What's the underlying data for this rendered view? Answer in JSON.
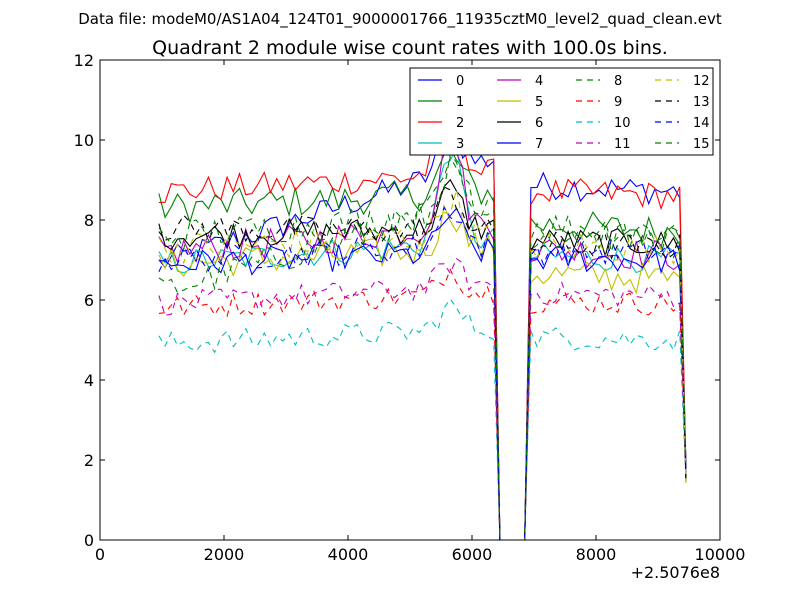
{
  "suptitle": "Data file: modeM0/AS1A04_124T01_9000001766_11935cztM0_level2_quad_clean.evt",
  "chart_data": {
    "type": "line",
    "title": "Quadrant 2 module wise count rates with 100.0s bins.",
    "xlabel": "",
    "ylabel": "",
    "xlim": [
      0,
      10000
    ],
    "ylim": [
      0,
      12
    ],
    "x_offset_label": "+2.5076e8",
    "xticks": [
      0,
      2000,
      4000,
      6000,
      8000,
      10000
    ],
    "yticks": [
      0,
      2,
      4,
      6,
      8,
      10,
      12
    ],
    "x": [
      950,
      1050,
      1150,
      1250,
      1350,
      1450,
      1550,
      1650,
      1750,
      1850,
      1950,
      2050,
      2150,
      2250,
      2350,
      2450,
      2550,
      2650,
      2750,
      2850,
      2950,
      3050,
      3150,
      3250,
      3350,
      3450,
      3550,
      3650,
      3750,
      3850,
      3950,
      4050,
      4150,
      4250,
      4350,
      4450,
      4550,
      4650,
      4750,
      4850,
      4950,
      5050,
      5150,
      5250,
      5350,
      5450,
      5550,
      5650,
      5750,
      5850,
      5950,
      6050,
      6150,
      6250,
      6350,
      6450,
      6550,
      6650,
      6750,
      6850,
      6950,
      7050,
      7150,
      7250,
      7350,
      7450,
      7550,
      7650,
      7750,
      7850,
      7950,
      8050,
      8150,
      8250,
      8350,
      8450,
      8550,
      8650,
      8750,
      8850,
      8950,
      9050,
      9150,
      9250,
      9350,
      9450
    ],
    "series": [
      {
        "name": "0",
        "color": "#0000ff",
        "dash": "solid",
        "base": [
          6.9,
          9.6,
          8.7
        ],
        "amp": 0.35,
        "peak": 1.0
      },
      {
        "name": "1",
        "color": "#008000",
        "dash": "solid",
        "base": [
          8.3,
          8.7,
          7.7
        ],
        "amp": 0.4,
        "peak": 1.0
      },
      {
        "name": "2",
        "color": "#ff0000",
        "dash": "solid",
        "base": [
          8.7,
          9.2,
          8.6
        ],
        "amp": 0.35,
        "peak": 1.8
      },
      {
        "name": "3",
        "color": "#00bfbf",
        "dash": "solid",
        "base": [
          6.9,
          7.5,
          7.0
        ],
        "amp": 0.35,
        "peak": 2.4
      },
      {
        "name": "4",
        "color": "#bf00bf",
        "dash": "solid",
        "base": [
          7.2,
          7.9,
          7.1
        ],
        "amp": 0.4,
        "peak": 2.2
      },
      {
        "name": "5",
        "color": "#bfbf00",
        "dash": "solid",
        "base": [
          6.9,
          7.3,
          6.5
        ],
        "amp": 0.4,
        "peak": 1.0
      },
      {
        "name": "6",
        "color": "#000000",
        "dash": "solid",
        "base": [
          7.6,
          7.8,
          7.4
        ],
        "amp": 0.35,
        "peak": 1.0
      },
      {
        "name": "7",
        "color": "#0000ff",
        "dash": "solid",
        "base": [
          6.9,
          7.2,
          7.0
        ],
        "amp": 0.35,
        "peak": 1.0
      },
      {
        "name": "8",
        "color": "#008000",
        "dash": "dashed",
        "base": [
          6.2,
          8.6,
          7.7
        ],
        "amp": 0.4,
        "peak": 1.0
      },
      {
        "name": "9",
        "color": "#ff0000",
        "dash": "dashed",
        "base": [
          5.8,
          6.2,
          5.9
        ],
        "amp": 0.3,
        "peak": 0.6
      },
      {
        "name": "10",
        "color": "#00bfbf",
        "dash": "dashed",
        "base": [
          4.9,
          5.3,
          5.0
        ],
        "amp": 0.3,
        "peak": 0.6
      },
      {
        "name": "11",
        "color": "#bf00bf",
        "dash": "dashed",
        "base": [
          5.9,
          6.4,
          6.1
        ],
        "amp": 0.3,
        "peak": 0.6
      },
      {
        "name": "12",
        "color": "#bfbf00",
        "dash": "dashed",
        "base": [
          7.3,
          7.6,
          7.3
        ],
        "amp": 0.4,
        "peak": 1.0
      },
      {
        "name": "13",
        "color": "#000000",
        "dash": "dashed",
        "base": [
          7.8,
          7.7,
          7.3
        ],
        "amp": 0.35,
        "peak": 1.0
      },
      {
        "name": "14",
        "color": "#0000ff",
        "dash": "dashed",
        "base": [
          7.0,
          7.4,
          7.2
        ],
        "amp": 0.35,
        "peak": 1.0
      },
      {
        "name": "15",
        "color": "#008000",
        "dash": "dashed",
        "base": [
          7.6,
          8.2,
          7.5
        ],
        "amp": 0.4,
        "peak": 1.2
      }
    ],
    "gap": {
      "drop_start": 6450,
      "zero_from": 6500,
      "zero_to": 6750,
      "recover": 6950
    },
    "end_values": {
      "x": 9450,
      "min": 1.4,
      "max": 2.0
    },
    "legend": {
      "location": "upper right",
      "ncol": 4
    }
  }
}
